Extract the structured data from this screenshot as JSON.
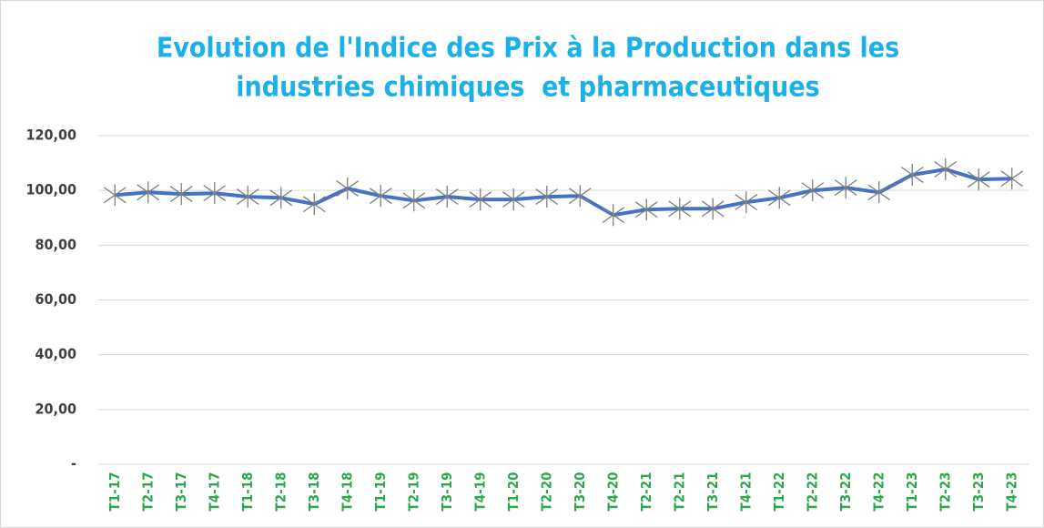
{
  "chart_data": {
    "type": "line",
    "title": [
      "Evolution de l'Indice des Prix à la Production dans les",
      "industries chimiques  et pharmaceutiques"
    ],
    "categories": [
      "T1-17",
      "T2-17",
      "T3-17",
      "T4-17",
      "T1-18",
      "T2-18",
      "T3-18",
      "T4-18",
      "T1-19",
      "T2-19",
      "T3-19",
      "T4-19",
      "T1-20",
      "T2-20",
      "T3-20",
      "T4-20",
      "T2-21",
      "T2-21",
      "T3-21",
      "T4-21",
      "T1-22",
      "T2-22",
      "T3-22",
      "T4-22",
      "T1-23",
      "T2-23",
      "T3-23",
      "T4-23"
    ],
    "values": [
      98.3,
      99.3,
      98.7,
      99,
      97.7,
      97.3,
      95,
      100.7,
      98,
      96.3,
      97.7,
      96.7,
      96.7,
      97.7,
      98,
      91,
      93,
      93.3,
      93.3,
      95.7,
      97.3,
      100,
      101,
      99.3,
      105.7,
      107.7,
      104,
      104.3
    ],
    "color": "#4472c4",
    "marker_color": "#7f7f7f",
    "ylim": [
      0,
      120
    ],
    "yticks": [
      {
        "value": 0,
        "label": "-"
      },
      {
        "value": 20,
        "label": "20,00"
      },
      {
        "value": 40,
        "label": "40,00"
      },
      {
        "value": 60,
        "label": "60,00"
      },
      {
        "value": 80,
        "label": "80,00"
      },
      {
        "value": 100,
        "label": "100,00"
      },
      {
        "value": 120,
        "label": "120,00"
      }
    ],
    "grid": true
  }
}
